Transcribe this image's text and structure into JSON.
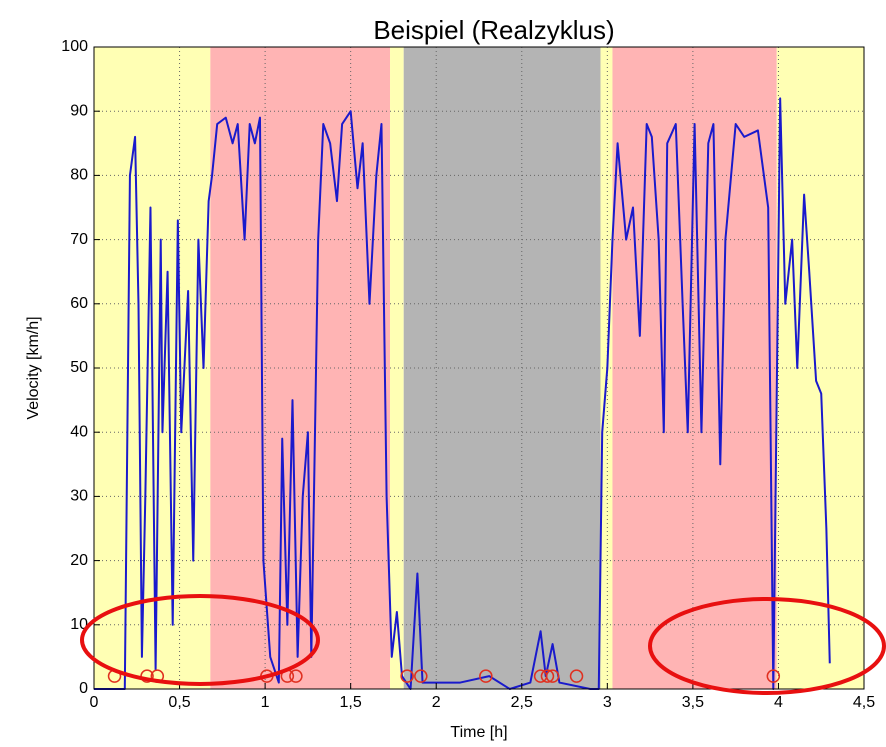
{
  "chart_data": {
    "type": "line",
    "title": "Beispiel (Realzyklus)",
    "x_label": "Time [h]",
    "y_label": "Velocity [km/h]",
    "xlim": [
      0,
      4.5
    ],
    "ylim": [
      0,
      100
    ],
    "xticks": [
      0,
      {
        "value": 0.5,
        "label": "0,5"
      },
      1,
      {
        "value": 1.5,
        "label": "1,5"
      },
      2,
      {
        "value": 2.5,
        "label": "2,5"
      },
      3,
      {
        "value": 3.5,
        "label": "3,5"
      },
      4,
      {
        "value": 4.5,
        "label": "4,5"
      }
    ],
    "yticks": [
      0,
      10,
      20,
      30,
      40,
      50,
      60,
      70,
      80,
      90,
      100
    ],
    "grid": true,
    "regions": [
      {
        "start": 0,
        "end": 0.68,
        "color": "#ffffb4"
      },
      {
        "start": 0.68,
        "end": 1.73,
        "color": "#ffb4b4"
      },
      {
        "start": 1.73,
        "end": 1.81,
        "color": "#ffffb4"
      },
      {
        "start": 1.81,
        "end": 2.96,
        "color": "#b4b4b4"
      },
      {
        "start": 2.96,
        "end": 3.03,
        "color": "#ffffb4"
      },
      {
        "start": 3.03,
        "end": 3.99,
        "color": "#ffb4b4"
      },
      {
        "start": 3.99,
        "end": 4.5,
        "color": "#ffffb4"
      }
    ],
    "series": [
      {
        "color": "#1a1acc",
        "x": [
          0,
          0.18,
          0.21,
          0.24,
          0.26,
          0.28,
          0.3,
          0.33,
          0.36,
          0.39,
          0.4,
          0.43,
          0.46,
          0.49,
          0.51,
          0.55,
          0.58,
          0.61,
          0.64,
          0.67,
          0.69,
          0.72,
          0.77,
          0.81,
          0.84,
          0.88,
          0.91,
          0.94,
          0.97,
          0.99,
          1.03,
          1.08,
          1.1,
          1.13,
          1.16,
          1.19,
          1.22,
          1.25,
          1.27,
          1.31,
          1.34,
          1.38,
          1.42,
          1.45,
          1.5,
          1.54,
          1.57,
          1.61,
          1.65,
          1.68,
          1.71,
          1.74,
          1.77,
          1.8,
          1.85,
          1.89,
          1.92,
          2.14,
          2.31,
          2.43,
          2.55,
          2.61,
          2.64,
          2.68,
          2.72,
          2.9,
          2.95,
          2.97,
          3.0,
          3.03,
          3.06,
          3.11,
          3.15,
          3.19,
          3.23,
          3.26,
          3.3,
          3.33,
          3.35,
          3.4,
          3.44,
          3.47,
          3.51,
          3.55,
          3.59,
          3.62,
          3.66,
          3.69,
          3.75,
          3.8,
          3.88,
          3.94,
          3.97,
          4.01,
          4.04,
          4.08,
          4.11,
          4.15,
          4.18,
          4.22,
          4.25,
          4.28,
          4.3
        ],
        "values": [
          0,
          0,
          80,
          86,
          60,
          5,
          30,
          75,
          3,
          70,
          40,
          65,
          10,
          73,
          40,
          62,
          20,
          70,
          50,
          76,
          80,
          88,
          89,
          85,
          88,
          70,
          88,
          85,
          89,
          20,
          5,
          1,
          39,
          10,
          45,
          5,
          30,
          40,
          5,
          70,
          88,
          85,
          76,
          88,
          90,
          78,
          85,
          60,
          80,
          88,
          30,
          5,
          12,
          2,
          0,
          18,
          1,
          1,
          2,
          0,
          1,
          9,
          2,
          7,
          1,
          0,
          0,
          40,
          50,
          70,
          85,
          70,
          75,
          55,
          88,
          86,
          70,
          40,
          85,
          88,
          60,
          40,
          88,
          40,
          85,
          88,
          35,
          70,
          88,
          86,
          87,
          75,
          0,
          92,
          60,
          70,
          50,
          77,
          65,
          48,
          46,
          25,
          4
        ]
      }
    ],
    "markers": {
      "color": "#e03020",
      "x": [
        0.12,
        0.31,
        0.37,
        1.01,
        1.13,
        1.18,
        1.83,
        1.91,
        2.29,
        2.61,
        2.65,
        2.68,
        2.82,
        3.97
      ],
      "y": [
        2,
        2,
        2,
        2,
        2,
        2,
        2,
        2,
        2,
        2,
        2,
        2,
        2,
        2
      ]
    }
  }
}
